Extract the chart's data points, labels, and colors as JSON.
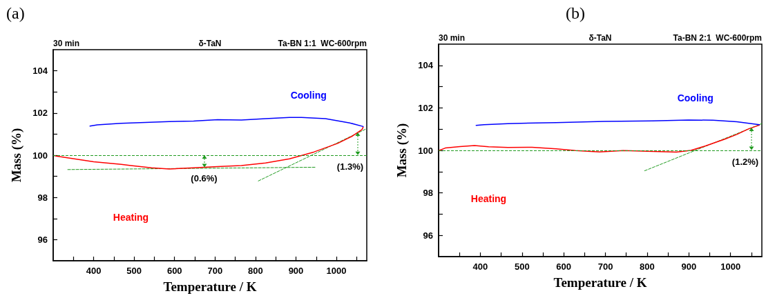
{
  "chart_data": [
    {
      "type": "line",
      "title": "(a)",
      "xlabel": "Temperature / K",
      "ylabel": "Mass (%)",
      "annotations": [
        "30 min",
        "δ-TaN",
        "Ta-BN 1:1  WC-600rpm",
        {
          "text": "(0.6%)",
          "x": 673,
          "y": 100
        },
        {
          "text": "(1.3%)",
          "x": 1052,
          "y": 100
        }
      ],
      "series": [
        {
          "name": "Heating",
          "color": "#ff0000",
          "x": [
            303,
            310,
            400,
            468,
            492,
            543,
            587,
            647,
            706,
            765,
            825,
            884,
            944,
            1003,
            1039,
            1063,
            1066
          ],
          "values": [
            99.98,
            99.95,
            99.69,
            99.57,
            99.51,
            99.4,
            99.35,
            99.4,
            99.46,
            99.51,
            99.63,
            99.83,
            100.15,
            100.56,
            100.9,
            101.21,
            101.33
          ]
        },
        {
          "name": "Cooling",
          "color": "#0000ff",
          "x": [
            1066,
            1033,
            973,
            914,
            884,
            825,
            765,
            706,
            647,
            587,
            528,
            468,
            409,
            391
          ],
          "values": [
            101.36,
            101.53,
            101.73,
            101.79,
            101.79,
            101.73,
            101.67,
            101.68,
            101.62,
            101.59,
            101.55,
            101.51,
            101.44,
            101.38
          ]
        },
        {
          "color": "#1f9a1f",
          "line_style": "dashed",
          "x": [
            336,
            947
          ],
          "values": [
            99.32,
            99.43
          ]
        },
        {
          "color": "#1f9a1f",
          "line_style": "dashed",
          "x": [
            807,
            1074
          ],
          "values": [
            98.78,
            101.25
          ]
        }
      ],
      "ref_lines": [
        {
          "axis": "y",
          "value": 100,
          "color": "#1f9a1f",
          "line_style": "dashed"
        }
      ],
      "xlim": [
        300,
        1075
      ],
      "xticks": [
        {
          "value": 350,
          "label": null
        },
        400,
        {
          "value": 450,
          "label": null
        },
        500,
        {
          "value": 550,
          "label": null
        },
        600,
        {
          "value": 650,
          "label": null
        },
        700,
        {
          "value": 750,
          "label": null
        },
        800,
        {
          "value": 850,
          "label": null
        },
        900,
        {
          "value": 950,
          "label": null
        },
        1000,
        {
          "value": 1050,
          "label": null
        }
      ],
      "ylim": [
        95,
        105
      ],
      "yticks": [
        96,
        {
          "value": 97,
          "label": null
        },
        98,
        {
          "value": 99,
          "label": null
        },
        100,
        {
          "value": 101,
          "label": null
        },
        102,
        {
          "value": 103,
          "label": null
        },
        104
      ],
      "grid": false,
      "legend": false,
      "marker": "none",
      "line_style": "solid"
    },
    {
      "type": "line",
      "title": "(b)",
      "xlabel": "Temperature / K",
      "ylabel": "Mass (%)",
      "annotations": [
        "30 min",
        "δ-TaN",
        "Ta-BN 2:1  WC-600rpm",
        {
          "text": "(1.2%)",
          "x": 1050,
          "y": 100
        }
      ],
      "series": [
        {
          "name": "Heating",
          "color": "#ff0000",
          "x": [
            302,
            316,
            351,
            386,
            420,
            466,
            524,
            582,
            628,
            686,
            743,
            813,
            870,
            905,
            940,
            986,
            1015,
            1043,
            1069
          ],
          "values": [
            100.0,
            100.11,
            100.18,
            100.23,
            100.17,
            100.14,
            100.15,
            100.07,
            99.99,
            99.93,
            99.99,
            99.95,
            99.92,
            100.0,
            100.21,
            100.53,
            100.75,
            101.01,
            101.19
          ]
        },
        {
          "name": "Cooling",
          "color": "#0000ff",
          "x": [
            1069,
            1015,
            958,
            899,
            813,
            697,
            582,
            466,
            409,
            390
          ],
          "values": [
            101.21,
            101.35,
            101.42,
            101.43,
            101.39,
            101.36,
            101.31,
            101.26,
            101.21,
            101.18
          ]
        },
        {
          "color": "#1f9a1f",
          "line_style": "dashed",
          "x": [
            794,
            1075
          ],
          "values": [
            99.04,
            101.26
          ]
        }
      ],
      "ref_lines": [
        {
          "axis": "y",
          "value": 100,
          "color": "#1f9a1f",
          "line_style": "dashed"
        }
      ],
      "xlim": [
        300,
        1075
      ],
      "xticks": [
        {
          "value": 350,
          "label": null
        },
        400,
        {
          "value": 450,
          "label": null
        },
        500,
        {
          "value": 550,
          "label": null
        },
        600,
        {
          "value": 650,
          "label": null
        },
        700,
        {
          "value": 750,
          "label": null
        },
        800,
        {
          "value": 850,
          "label": null
        },
        900,
        {
          "value": 950,
          "label": null
        },
        1000,
        {
          "value": 1050,
          "label": null
        }
      ],
      "ylim": [
        95,
        105
      ],
      "yticks": [
        96,
        {
          "value": 97,
          "label": null
        },
        98,
        {
          "value": 99,
          "label": null
        },
        100,
        {
          "value": 101,
          "label": null
        },
        102,
        {
          "value": 103,
          "label": null
        },
        104
      ],
      "grid": false,
      "legend": false,
      "marker": "none",
      "line_style": "solid"
    }
  ]
}
